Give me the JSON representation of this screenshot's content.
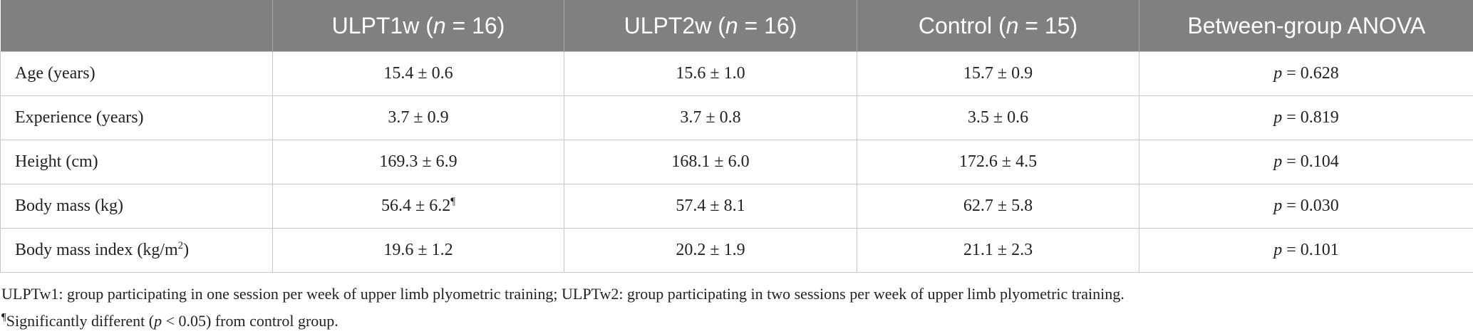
{
  "table": {
    "header": [
      [
        {
          "text": "ULPT1w ("
        },
        {
          "text": "n",
          "style": "italic"
        },
        {
          "text": " = 16)"
        }
      ],
      [
        {
          "text": "ULPT2w ("
        },
        {
          "text": "n",
          "style": "italic"
        },
        {
          "text": " = 16)"
        }
      ],
      [
        {
          "text": "Control ("
        },
        {
          "text": "n",
          "style": "italic"
        },
        {
          "text": " = 15)"
        }
      ],
      [
        {
          "text": "Between-group ANOVA"
        }
      ]
    ],
    "rows": [
      [
        [
          {
            "text": "Age (years)"
          }
        ],
        [
          {
            "text": "15.4 ± 0.6"
          }
        ],
        [
          {
            "text": "15.6 ± 1.0"
          }
        ],
        [
          {
            "text": "15.7 ± 0.9"
          }
        ],
        [
          {
            "text": "p",
            "style": "italic"
          },
          {
            "text": " = 0.628"
          }
        ]
      ],
      [
        [
          {
            "text": "Experience (years)"
          }
        ],
        [
          {
            "text": "3.7 ± 0.9"
          }
        ],
        [
          {
            "text": "3.7 ± 0.8"
          }
        ],
        [
          {
            "text": "3.5 ± 0.6"
          }
        ],
        [
          {
            "text": "p",
            "style": "italic"
          },
          {
            "text": " = 0.819"
          }
        ]
      ],
      [
        [
          {
            "text": "Height (cm)"
          }
        ],
        [
          {
            "text": "169.3 ± 6.9"
          }
        ],
        [
          {
            "text": "168.1 ± 6.0"
          }
        ],
        [
          {
            "text": "172.6 ± 4.5"
          }
        ],
        [
          {
            "text": "p",
            "style": "italic"
          },
          {
            "text": " = 0.104"
          }
        ]
      ],
      [
        [
          {
            "text": "Body mass (kg)"
          }
        ],
        [
          {
            "text": "56.4 ± 6.2"
          },
          {
            "text": "¶",
            "style": "superscript"
          }
        ],
        [
          {
            "text": "57.4 ± 8.1"
          }
        ],
        [
          {
            "text": "62.7 ± 5.8"
          }
        ],
        [
          {
            "text": "p",
            "style": "italic"
          },
          {
            "text": " = 0.030"
          }
        ]
      ],
      [
        [
          {
            "text": "Body mass index (kg/m"
          },
          {
            "text": "2",
            "style": "superscript"
          },
          {
            "text": ")"
          }
        ],
        [
          {
            "text": "19.6 ± 1.2"
          }
        ],
        [
          {
            "text": "20.2 ± 1.9"
          }
        ],
        [
          {
            "text": "21.1 ± 2.3"
          }
        ],
        [
          {
            "text": "p",
            "style": "italic"
          },
          {
            "text": " = 0.101"
          }
        ]
      ]
    ]
  },
  "footnotes": [
    [
      {
        "text": "ULPTw1: group participating in one session per week of upper limb plyometric training; ULPTw2: group participating in two sessions per week of upper limb plyometric training."
      }
    ],
    [
      {
        "text": "¶",
        "style": "superscript"
      },
      {
        "text": "Significantly different ("
      },
      {
        "text": "p",
        "style": "italic"
      },
      {
        "text": " < 0.05) from control group."
      }
    ]
  ]
}
